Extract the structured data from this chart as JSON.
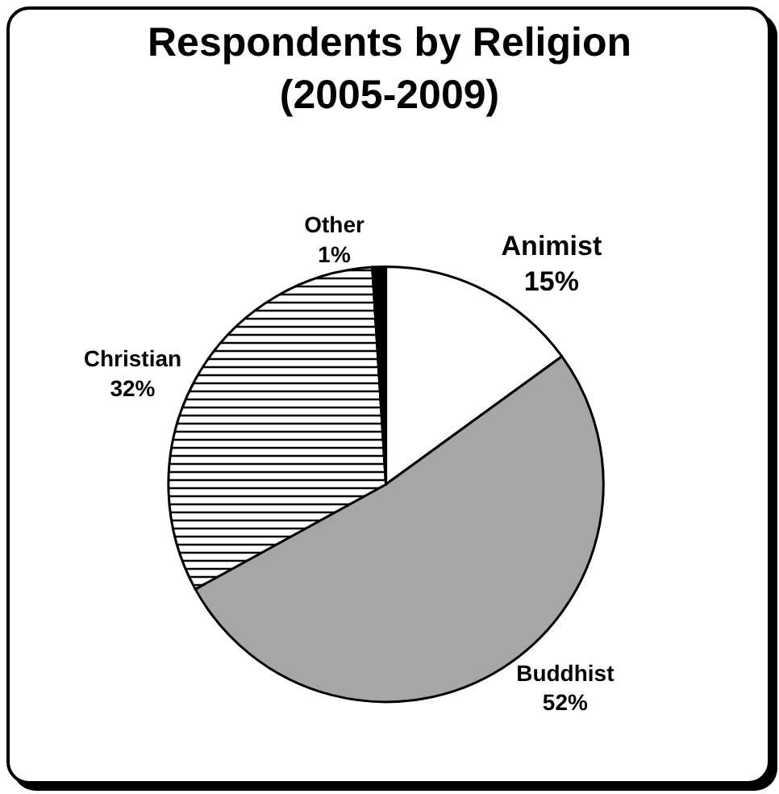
{
  "chart_data": {
    "type": "pie",
    "title": "Respondents by Religion\n(2005-2009)",
    "categories": [
      "Animist",
      "Buddhist",
      "Christian",
      "Other"
    ],
    "values": [
      15,
      52,
      32,
      1
    ],
    "colors": [
      "#ffffff",
      "#a6a6a6",
      "#000000",
      "#000000"
    ],
    "value_labels": [
      "15%",
      "52%",
      "32%",
      "1%"
    ],
    "legend": false
  }
}
